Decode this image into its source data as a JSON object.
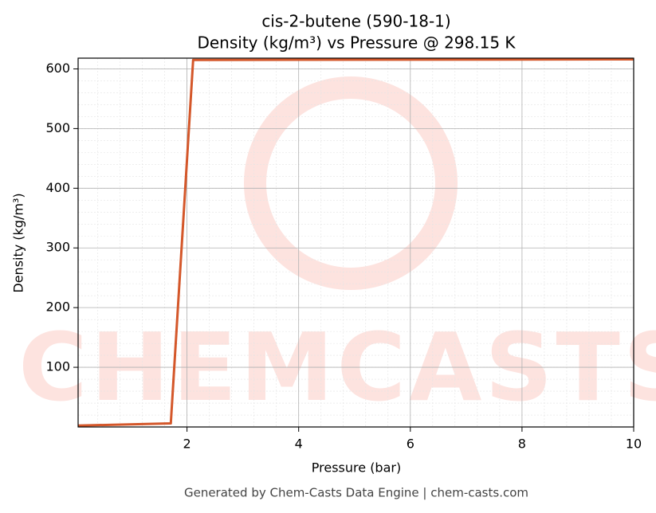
{
  "chart_data": {
    "type": "line",
    "title": "cis-2-butene (590-18-1)",
    "subtitle": "Density (kg/m³) vs Pressure @ 298.15 K",
    "x_label": "Pressure (bar)",
    "y_label": "Density (kg/m³)",
    "x": [
      0.05,
      1.71,
      2.11,
      10
    ],
    "series": [
      {
        "name": "Density",
        "color": "#d4572a",
        "values": [
          2.3,
          6,
          615,
          616
        ]
      }
    ],
    "xlim": [
      0.05,
      10
    ],
    "ylim": [
      0,
      618
    ],
    "xticks": [
      2,
      4,
      6,
      8,
      10
    ],
    "yticks": [
      100,
      200,
      300,
      400,
      500,
      600
    ],
    "grid": true,
    "minor_grid": true,
    "watermark": "CHEMCASTS",
    "footer": "Generated by Chem-Casts Data Engine | chem-casts.com"
  }
}
